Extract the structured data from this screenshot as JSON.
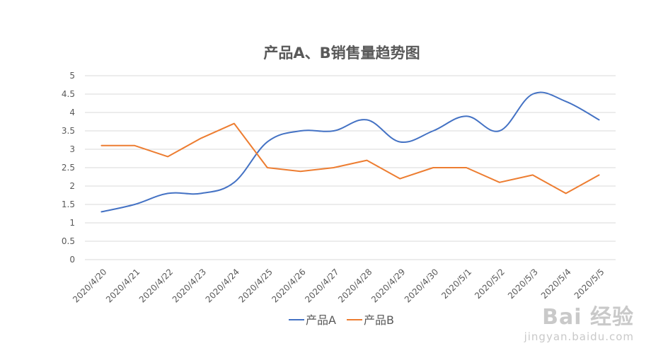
{
  "chart_data": {
    "type": "line",
    "title": "产品A、B销售量趋势图",
    "categories": [
      "2020/4/20",
      "2020/4/21",
      "2020/4/22",
      "2020/4/23",
      "2020/4/24",
      "2020/4/25",
      "2020/4/26",
      "2020/4/27",
      "2020/4/28",
      "2020/4/29",
      "2020/4/30",
      "2020/5/1",
      "2020/5/2",
      "2020/5/3",
      "2020/5/4",
      "2020/5/5"
    ],
    "ylim": [
      0,
      5
    ],
    "yticks": [
      "0",
      "0.5",
      "1",
      "1.5",
      "2",
      "2.5",
      "3",
      "3.5",
      "4",
      "4.5",
      "5"
    ],
    "grid": true,
    "legend_position": "bottom",
    "series": [
      {
        "name": "产品A",
        "color": "#4472c4",
        "smooth": true,
        "values": [
          1.3,
          1.5,
          1.8,
          1.8,
          2.1,
          3.2,
          3.5,
          3.5,
          3.8,
          3.2,
          3.5,
          3.9,
          3.5,
          4.5,
          4.3,
          3.8
        ]
      },
      {
        "name": "产品B",
        "color": "#ed7d31",
        "smooth": false,
        "values": [
          3.1,
          3.1,
          2.8,
          3.3,
          3.7,
          2.5,
          2.4,
          2.5,
          2.7,
          2.2,
          2.5,
          2.5,
          2.1,
          2.3,
          1.8,
          2.3
        ]
      }
    ]
  },
  "watermark": {
    "logo": "Bai 经验",
    "url": "jingyan.baidu.com"
  }
}
